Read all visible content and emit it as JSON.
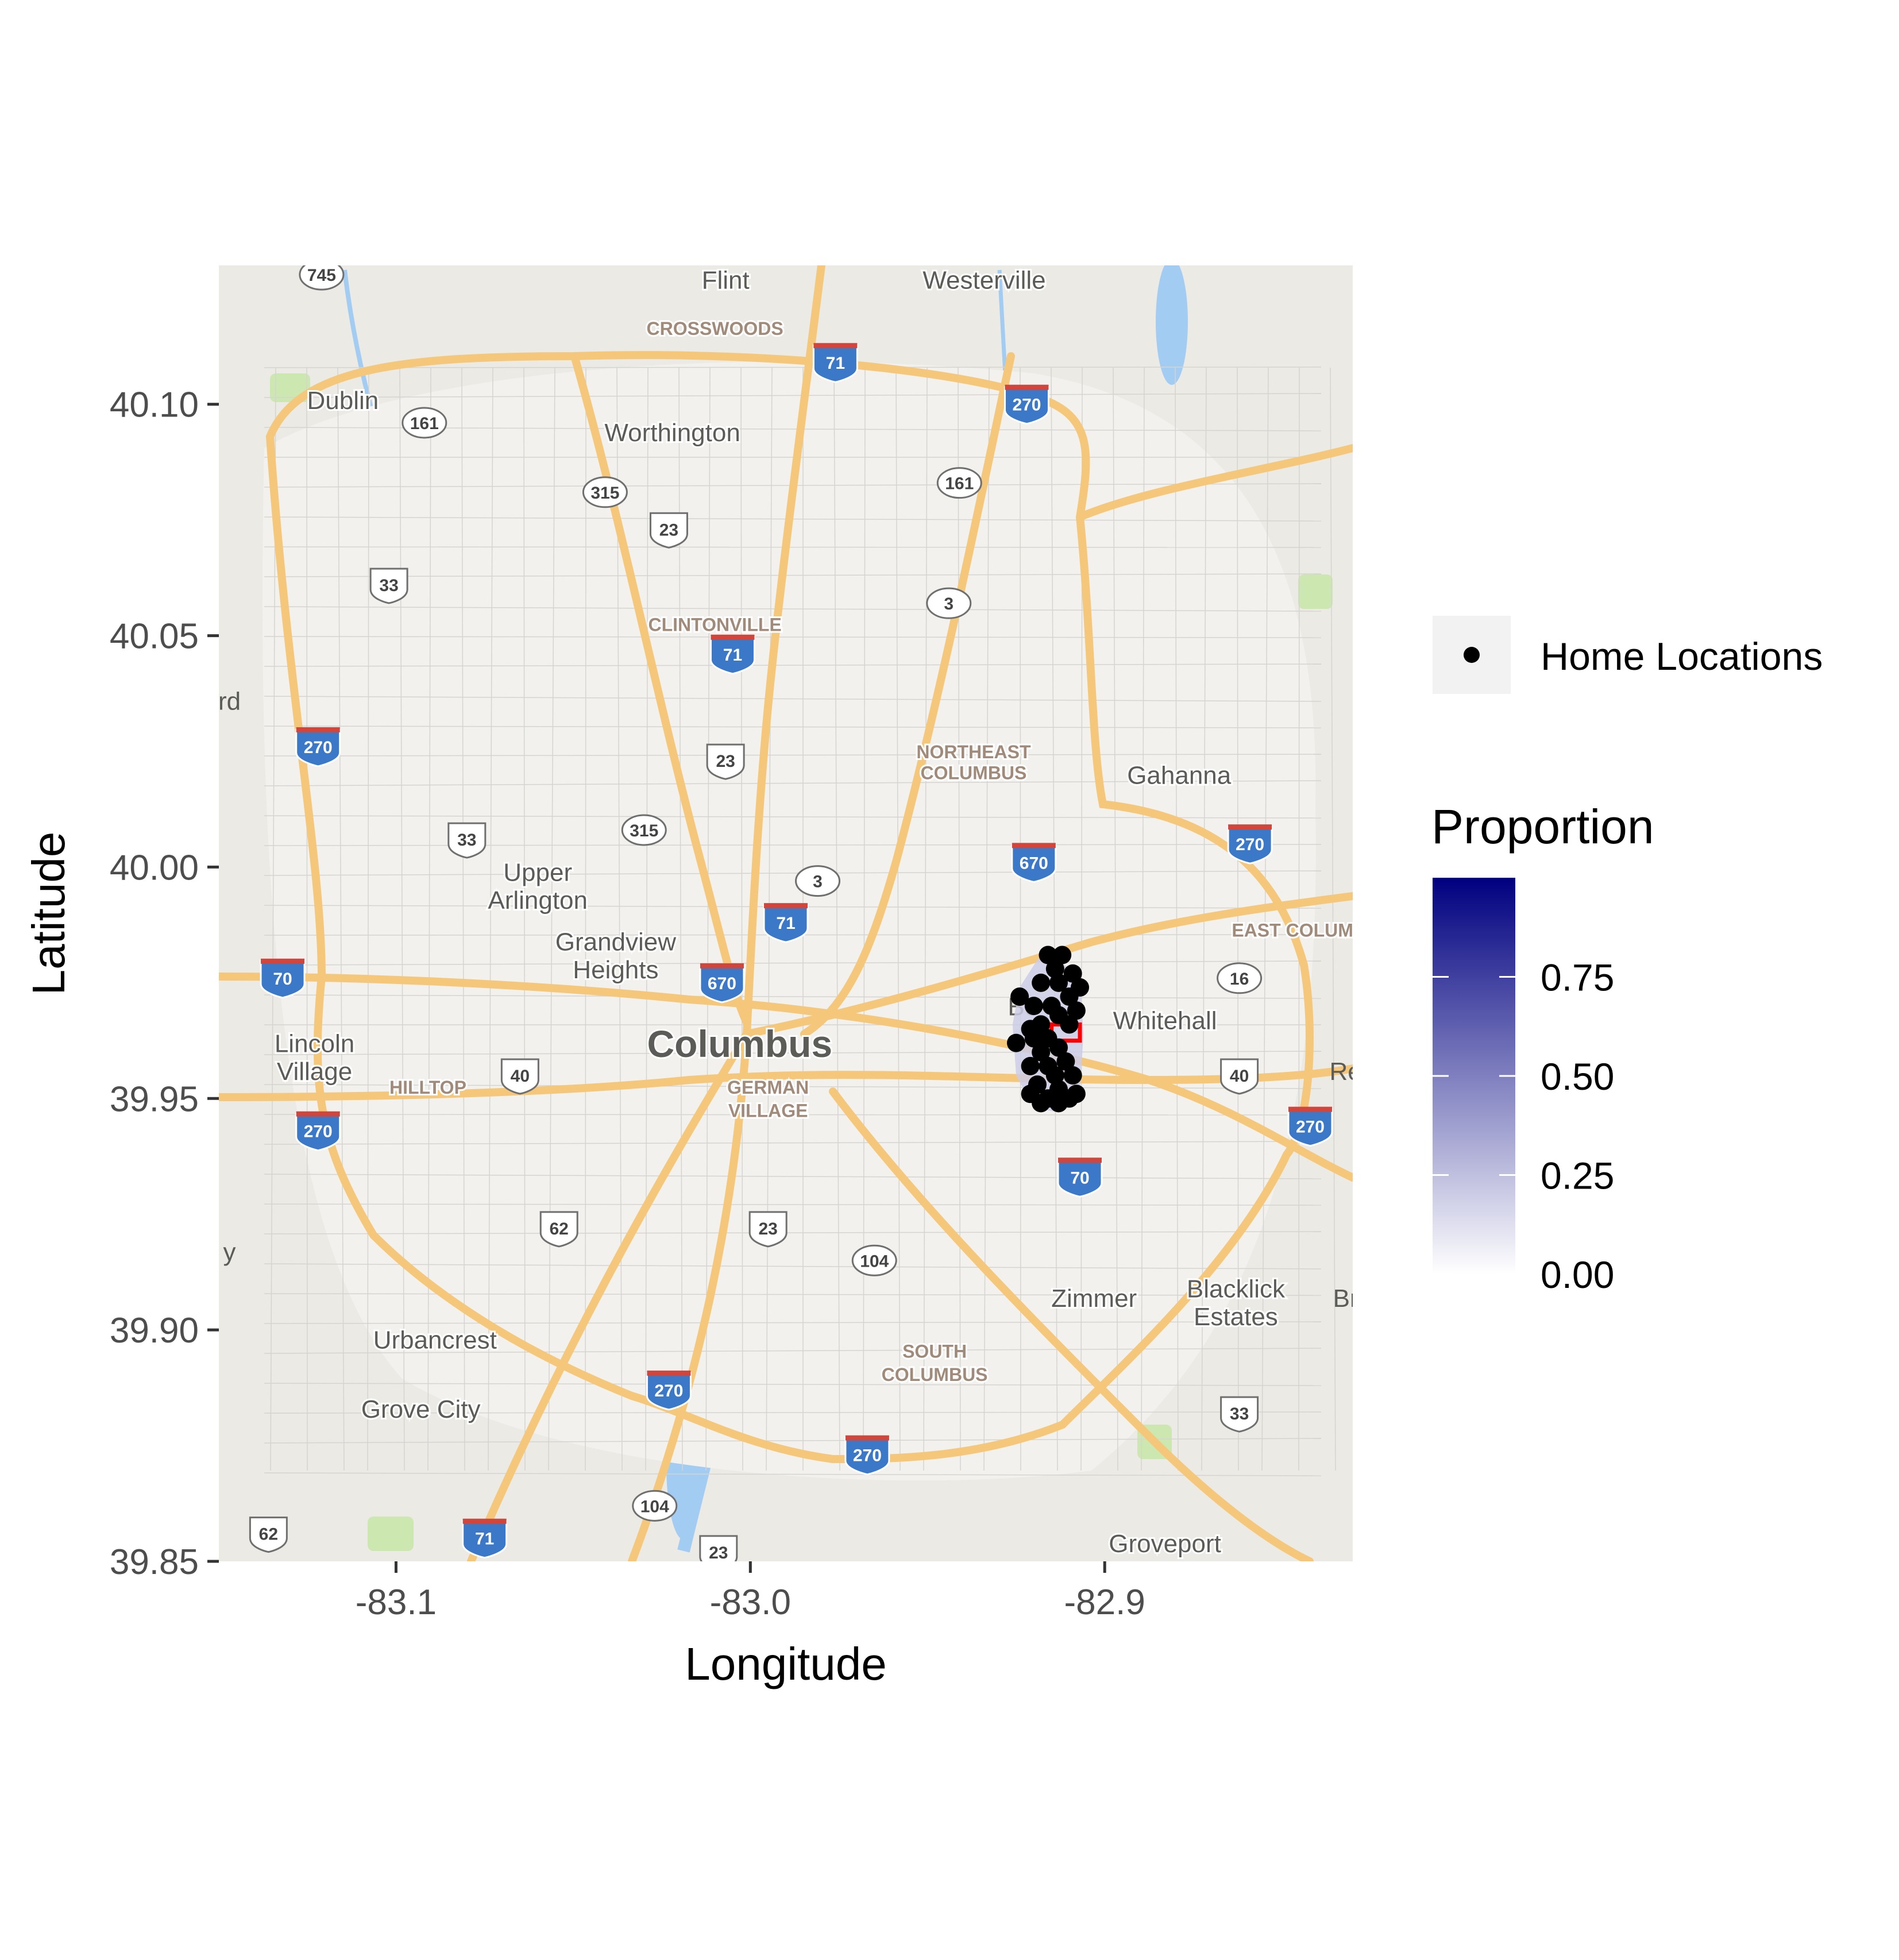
{
  "axes": {
    "x_label": "Longitude",
    "y_label": "Latitude",
    "x_range": [
      -83.15,
      -82.83
    ],
    "y_range": [
      39.85,
      40.13
    ],
    "x_ticks": [
      {
        "value": -83.1,
        "label": "-83.1"
      },
      {
        "value": -83.0,
        "label": "-83.0"
      },
      {
        "value": -82.9,
        "label": "-82.9"
      }
    ],
    "y_ticks": [
      {
        "value": 39.85,
        "label": "39.85"
      },
      {
        "value": 39.9,
        "label": "39.90"
      },
      {
        "value": 39.95,
        "label": "39.95"
      },
      {
        "value": 40.0,
        "label": "40.00"
      },
      {
        "value": 40.05,
        "label": "40.05"
      },
      {
        "value": 40.1,
        "label": "40.10"
      }
    ]
  },
  "legend": {
    "points_label": "Home Locations",
    "fill_title": "Proportion",
    "fill_breaks": [
      {
        "value": 0.0,
        "label": "0.00"
      },
      {
        "value": 0.25,
        "label": "0.25"
      },
      {
        "value": 0.5,
        "label": "0.50"
      },
      {
        "value": 0.75,
        "label": "0.75"
      }
    ],
    "fill_range": [
      0,
      1
    ],
    "color_low": "#ffffff",
    "color_high": "#000080"
  },
  "map": {
    "place_labels": [
      {
        "text": "Flint",
        "lon": -83.007,
        "lat": 40.125,
        "kind": "place"
      },
      {
        "text": "Westerville",
        "lon": -82.934,
        "lat": 40.125,
        "kind": "place"
      },
      {
        "text": "CROSSWOODS",
        "lon": -83.01,
        "lat": 40.115,
        "kind": "district"
      },
      {
        "text": "Dublin",
        "lon": -83.115,
        "lat": 40.099,
        "kind": "place"
      },
      {
        "text": "Worthington",
        "lon": -83.022,
        "lat": 40.092,
        "kind": "place"
      },
      {
        "text": "CLINTONVILLE",
        "lon": -83.01,
        "lat": 40.051,
        "kind": "district"
      },
      {
        "text": "NORTHEAST",
        "lon": -82.937,
        "lat": 40.0235,
        "kind": "district"
      },
      {
        "text": "COLUMBUS",
        "lon": -82.937,
        "lat": 40.019,
        "kind": "district"
      },
      {
        "text": "Gahanna",
        "lon": -82.879,
        "lat": 40.018,
        "kind": "place"
      },
      {
        "text": "Upper",
        "lon": -83.06,
        "lat": 39.997,
        "kind": "place"
      },
      {
        "text": "Arlington",
        "lon": -83.06,
        "lat": 39.991,
        "kind": "place"
      },
      {
        "text": "EAST COLUM",
        "lon": -82.847,
        "lat": 39.985,
        "kind": "district"
      },
      {
        "text": "Grandview",
        "lon": -83.038,
        "lat": 39.982,
        "kind": "place"
      },
      {
        "text": "Heights",
        "lon": -83.038,
        "lat": 39.976,
        "kind": "place"
      },
      {
        "text": "Whitehall",
        "lon": -82.883,
        "lat": 39.965,
        "kind": "place"
      },
      {
        "text": "Columbus",
        "lon": -83.003,
        "lat": 39.959,
        "kind": "city"
      },
      {
        "text": "Lincoln",
        "lon": -83.123,
        "lat": 39.96,
        "kind": "place"
      },
      {
        "text": "Village",
        "lon": -83.123,
        "lat": 39.954,
        "kind": "place"
      },
      {
        "text": "HILLTOP",
        "lon": -83.091,
        "lat": 39.951,
        "kind": "district"
      },
      {
        "text": "GERMAN",
        "lon": -82.995,
        "lat": 39.951,
        "kind": "district"
      },
      {
        "text": "VILLAGE",
        "lon": -82.995,
        "lat": 39.946,
        "kind": "district"
      },
      {
        "text": "Zimmer",
        "lon": -82.903,
        "lat": 39.905,
        "kind": "place"
      },
      {
        "text": "Blacklick",
        "lon": -82.863,
        "lat": 39.907,
        "kind": "place"
      },
      {
        "text": "Estates",
        "lon": -82.863,
        "lat": 39.901,
        "kind": "place"
      },
      {
        "text": "Urbancrest",
        "lon": -83.089,
        "lat": 39.896,
        "kind": "place"
      },
      {
        "text": "SOUTH",
        "lon": -82.948,
        "lat": 39.894,
        "kind": "district"
      },
      {
        "text": "COLUMBUS",
        "lon": -82.948,
        "lat": 39.889,
        "kind": "district"
      },
      {
        "text": "Grove City",
        "lon": -83.093,
        "lat": 39.881,
        "kind": "place"
      },
      {
        "text": "Groveport",
        "lon": -82.883,
        "lat": 39.852,
        "kind": "place"
      }
    ],
    "edge_fragments": [
      {
        "text": "rd",
        "lon": -83.147,
        "lat": 40.034
      },
      {
        "text": "y",
        "lon": -83.147,
        "lat": 39.915
      },
      {
        "text": "Re",
        "lon": -82.832,
        "lat": 39.954
      },
      {
        "text": "Br",
        "lon": -82.832,
        "lat": 39.905
      },
      {
        "text": "Be",
        "lon": -82.923,
        "lat": 39.968
      }
    ],
    "highway_shields": [
      {
        "label": "745",
        "kind": "state",
        "lon": -83.121,
        "lat": 40.128
      },
      {
        "label": "71",
        "kind": "interstate",
        "lon": -82.976,
        "lat": 40.109
      },
      {
        "label": "270",
        "kind": "interstate",
        "lon": -82.922,
        "lat": 40.1
      },
      {
        "label": "161",
        "kind": "state",
        "lon": -83.092,
        "lat": 40.096
      },
      {
        "label": "315",
        "kind": "state",
        "lon": -83.041,
        "lat": 40.081
      },
      {
        "label": "161",
        "kind": "state",
        "lon": -82.941,
        "lat": 40.083
      },
      {
        "label": "23",
        "kind": "us",
        "lon": -83.023,
        "lat": 40.073
      },
      {
        "label": "33",
        "kind": "us",
        "lon": -83.102,
        "lat": 40.061
      },
      {
        "label": "3",
        "kind": "state",
        "lon": -82.944,
        "lat": 40.057
      },
      {
        "label": "71",
        "kind": "interstate",
        "lon": -83.005,
        "lat": 40.046
      },
      {
        "label": "270",
        "kind": "interstate",
        "lon": -83.122,
        "lat": 40.026
      },
      {
        "label": "23",
        "kind": "us",
        "lon": -83.007,
        "lat": 40.023
      },
      {
        "label": "270",
        "kind": "interstate",
        "lon": -82.859,
        "lat": 40.005
      },
      {
        "label": "315",
        "kind": "state",
        "lon": -83.03,
        "lat": 40.008
      },
      {
        "label": "33",
        "kind": "us",
        "lon": -83.08,
        "lat": 40.006
      },
      {
        "label": "670",
        "kind": "interstate",
        "lon": -82.92,
        "lat": 40.001
      },
      {
        "label": "3",
        "kind": "state",
        "lon": -82.981,
        "lat": 39.997
      },
      {
        "label": "71",
        "kind": "interstate",
        "lon": -82.99,
        "lat": 39.988
      },
      {
        "label": "16",
        "kind": "state",
        "lon": -82.862,
        "lat": 39.976
      },
      {
        "label": "70",
        "kind": "interstate",
        "lon": -83.132,
        "lat": 39.976
      },
      {
        "label": "670",
        "kind": "interstate",
        "lon": -83.008,
        "lat": 39.975
      },
      {
        "label": "40",
        "kind": "us",
        "lon": -83.065,
        "lat": 39.955
      },
      {
        "label": "40",
        "kind": "us",
        "lon": -82.862,
        "lat": 39.955
      },
      {
        "label": "270",
        "kind": "interstate",
        "lon": -83.122,
        "lat": 39.943
      },
      {
        "label": "270",
        "kind": "interstate",
        "lon": -82.842,
        "lat": 39.944
      },
      {
        "label": "70",
        "kind": "interstate",
        "lon": -82.907,
        "lat": 39.933
      },
      {
        "label": "62",
        "kind": "us",
        "lon": -83.054,
        "lat": 39.922
      },
      {
        "label": "23",
        "kind": "us",
        "lon": -82.995,
        "lat": 39.922
      },
      {
        "label": "104",
        "kind": "state",
        "lon": -82.965,
        "lat": 39.915
      },
      {
        "label": "270",
        "kind": "interstate",
        "lon": -83.023,
        "lat": 39.887
      },
      {
        "label": "33",
        "kind": "us",
        "lon": -82.862,
        "lat": 39.882
      },
      {
        "label": "270",
        "kind": "interstate",
        "lon": -82.967,
        "lat": 39.873
      },
      {
        "label": "104",
        "kind": "state",
        "lon": -83.027,
        "lat": 39.862
      },
      {
        "label": "62",
        "kind": "us",
        "lon": -83.136,
        "lat": 39.856
      },
      {
        "label": "71",
        "kind": "interstate",
        "lon": -83.075,
        "lat": 39.855
      },
      {
        "label": "23",
        "kind": "us",
        "lon": -83.009,
        "lat": 39.852
      }
    ]
  },
  "chart_data": {
    "type": "scatter",
    "xlabel": "Longitude",
    "ylabel": "Latitude",
    "xlim": [
      -83.15,
      -82.83
    ],
    "ylim": [
      39.85,
      40.13
    ],
    "legend_position": "right",
    "series": [
      {
        "name": "Home Locations",
        "points": [
          [
            -82.916,
            39.981
          ],
          [
            -82.912,
            39.981
          ],
          [
            -82.914,
            39.978
          ],
          [
            -82.909,
            39.977
          ],
          [
            -82.913,
            39.975
          ],
          [
            -82.907,
            39.974
          ],
          [
            -82.918,
            39.975
          ],
          [
            -82.91,
            39.972
          ],
          [
            -82.924,
            39.972
          ],
          [
            -82.915,
            39.97
          ],
          [
            -82.92,
            39.97
          ],
          [
            -82.908,
            39.969
          ],
          [
            -82.913,
            39.968
          ],
          [
            -82.918,
            39.966
          ],
          [
            -82.921,
            39.965
          ],
          [
            -82.91,
            39.966
          ],
          [
            -82.916,
            39.963
          ],
          [
            -82.92,
            39.963
          ],
          [
            -82.925,
            39.962
          ],
          [
            -82.913,
            39.961
          ],
          [
            -82.918,
            39.96
          ],
          [
            -82.911,
            39.958
          ],
          [
            -82.916,
            39.957
          ],
          [
            -82.921,
            39.957
          ],
          [
            -82.914,
            39.955
          ],
          [
            -82.909,
            39.955
          ],
          [
            -82.919,
            39.953
          ],
          [
            -82.913,
            39.952
          ],
          [
            -82.921,
            39.951
          ],
          [
            -82.916,
            39.95
          ],
          [
            -82.91,
            39.95
          ],
          [
            -82.918,
            39.949
          ],
          [
            -82.913,
            39.949
          ],
          [
            -82.908,
            39.951
          ]
        ]
      }
    ],
    "polygons": [
      {
        "name": "home-range",
        "proportion": 0.2,
        "lonlat": [
          [
            -82.916,
            39.982
          ],
          [
            -82.907,
            39.976
          ],
          [
            -82.906,
            39.964
          ],
          [
            -82.907,
            39.951
          ],
          [
            -82.913,
            39.947
          ],
          [
            -82.92,
            39.948
          ],
          [
            -82.925,
            39.955
          ],
          [
            -82.926,
            39.966
          ],
          [
            -82.924,
            39.974
          ],
          [
            -82.919,
            39.98
          ]
        ]
      }
    ],
    "highlight": {
      "name": "target-area",
      "lon": [
        -82.915,
        -82.907
      ],
      "lat": [
        39.9625,
        39.966
      ]
    }
  }
}
